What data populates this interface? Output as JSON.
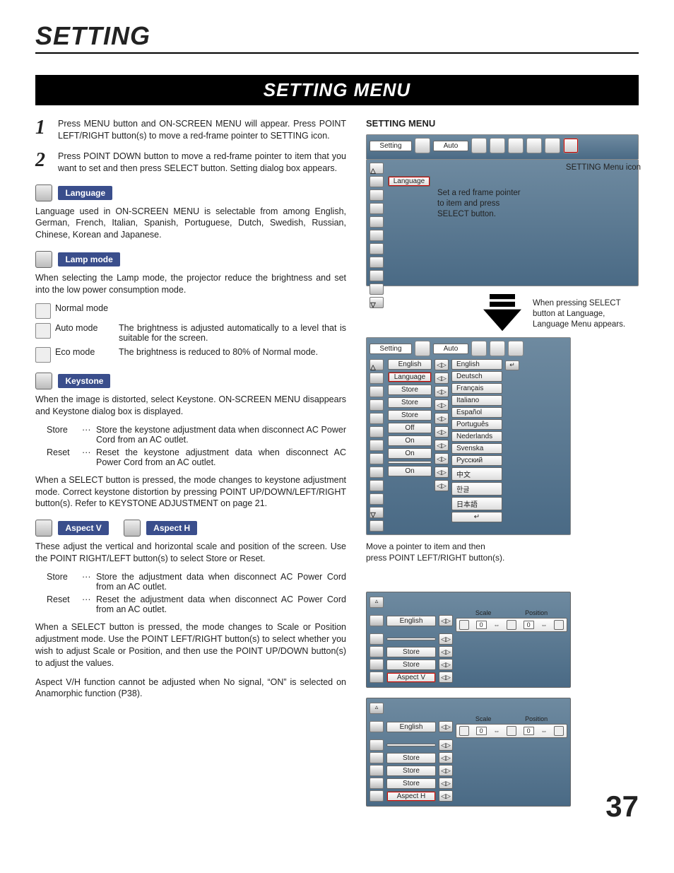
{
  "page_title": "SETTING",
  "bar_title": "SETTING MENU",
  "steps": [
    {
      "num": "1",
      "text": "Press MENU button and ON-SCREEN MENU will appear.  Press POINT LEFT/RIGHT button(s) to move a red-frame pointer to SETTING icon."
    },
    {
      "num": "2",
      "text": "Press POINT DOWN button to move a red-frame pointer to item that you want to set and then press SELECT button.  Setting dialog box appears."
    }
  ],
  "language": {
    "label": "Language",
    "text": "Language used in ON-SCREEN MENU is selectable from among English, German, French, Italian, Spanish, Portuguese, Dutch, Swedish, Russian, Chinese, Korean and Japanese."
  },
  "lamp": {
    "label": "Lamp mode",
    "intro": "When selecting the Lamp mode, the projector reduce the brightness and set into the low power consumption mode.",
    "modes": [
      {
        "name": "Normal mode",
        "desc": ""
      },
      {
        "name": "Auto mode",
        "desc": "The brightness is adjusted automatically to a level that is suitable for the screen."
      },
      {
        "name": "Eco mode",
        "desc": "The brightness is reduced to 80% of Normal mode."
      }
    ]
  },
  "keystone": {
    "label": "Keystone",
    "intro": "When the image is distorted, select Keystone.  ON-SCREEN MENU disappears and Keystone dialog box is displayed.",
    "items": [
      {
        "k": "Store",
        "v": "Store the keystone adjustment data when disconnect AC Power Cord from an AC outlet."
      },
      {
        "k": "Reset",
        "v": "Reset the keystone adjustment data when disconnect AC Power Cord from an AC outlet."
      }
    ],
    "after": "When a SELECT button is pressed, the mode changes to keystone adjustment mode. Correct keystone distortion by pressing POINT UP/DOWN/LEFT/RIGHT button(s). Refer to KEYSTONE ADJUSTMENT on page 21."
  },
  "aspect": {
    "v_label": "Aspect V",
    "h_label": "Aspect H",
    "intro": "These adjust the vertical and horizontal scale and position of the screen. Use the POINT RIGHT/LEFT button(s) to select Store or Reset.",
    "items": [
      {
        "k": "Store",
        "v": "Store the adjustment data when disconnect AC Power Cord from an AC outlet."
      },
      {
        "k": "Reset",
        "v": "Reset the adjustment data when disconnect AC Power Cord from an AC outlet."
      }
    ],
    "after1": "When a SELECT button is pressed, the mode changes to Scale or Position adjustment mode. Use the POINT LEFT/RIGHT button(s) to select whether you wish to adjust Scale or Position, and then use the POINT UP/DOWN button(s) to adjust the values.",
    "after2": "Aspect V/H function cannot be adjusted when No signal, “ON” is selected on Anamorphic function (P38)."
  },
  "right": {
    "heading": "SETTING MENU",
    "tab_setting": "Setting",
    "tab_auto": "Auto",
    "menu_icon_label": "SETTING Menu icon",
    "callout1": "Set a red frame pointer to item and press SELECT button.",
    "callout2": "When pressing SELECT button at Language, Language Menu appears.",
    "panel1_items": [
      "Language"
    ],
    "panel2_left": [
      "English",
      "Language",
      "Store",
      "Store",
      "Store",
      "Off",
      "On",
      "On",
      "",
      "On"
    ],
    "panel2_langs": [
      "English",
      "Deutsch",
      "Français",
      "Italiano",
      "Español",
      "Português",
      "Nederlands",
      "Svenska",
      "Русский",
      "中文",
      "한글",
      "日本語"
    ],
    "panel2_caption": "Move a pointer to item and then press POINT LEFT/RIGHT button(s).",
    "panel3_rows": [
      "English",
      "",
      "Store",
      "Store",
      "Aspect V"
    ],
    "panel3_scale_hdr": [
      "Scale",
      "Position"
    ],
    "panel3_vals": [
      "0",
      "0"
    ],
    "panel4_rows": [
      "English",
      "",
      "Store",
      "Store",
      "Store",
      "Aspect H"
    ],
    "panel4_vals": [
      "0",
      "0"
    ]
  },
  "page_number": "37",
  "colors": {
    "label_bg": "#3a4e8c",
    "panel_bg_top": "#6e8aa0",
    "panel_bg_bot": "#4a6a85"
  }
}
